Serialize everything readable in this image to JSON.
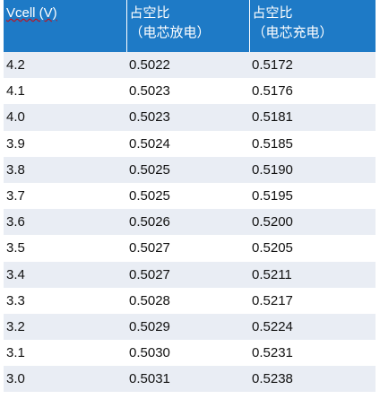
{
  "table": {
    "header": [
      "Vcell (V)",
      [
        "占空比",
        "（电芯放电）"
      ],
      [
        "占空比",
        "（电芯充电）"
      ]
    ],
    "rows": [
      [
        "4.2",
        "0.5022",
        "0.5172"
      ],
      [
        "4.1",
        "0.5023",
        "0.5176"
      ],
      [
        "4.0",
        "0.5023",
        "0.5181"
      ],
      [
        "3.9",
        "0.5024",
        "0.5185"
      ],
      [
        "3.8",
        "0.5025",
        "0.5190"
      ],
      [
        "3.7",
        "0.5025",
        "0.5195"
      ],
      [
        "3.6",
        "0.5026",
        "0.5200"
      ],
      [
        "3.5",
        "0.5027",
        "0.5205"
      ],
      [
        "3.4",
        "0.5027",
        "0.5211"
      ],
      [
        "3.3",
        "0.5028",
        "0.5217"
      ],
      [
        "3.2",
        "0.5029",
        "0.5224"
      ],
      [
        "3.1",
        "0.5030",
        "0.5231"
      ],
      [
        "3.0",
        "0.5031",
        "0.5238"
      ]
    ]
  }
}
